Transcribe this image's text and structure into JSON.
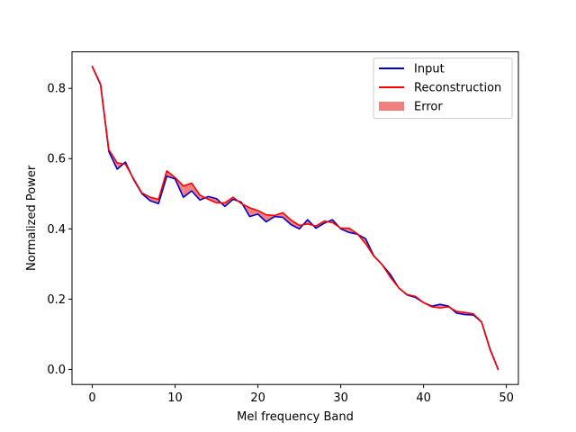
{
  "chart_data": {
    "type": "line",
    "title": "",
    "xlabel": "Mel frequency Band",
    "ylabel": "Normalized Power",
    "xlim": [
      -2.45,
      51.45
    ],
    "ylim": [
      -0.043,
      0.904
    ],
    "xticks": [
      0,
      10,
      20,
      30,
      40,
      50
    ],
    "yticks": [
      0.0,
      0.2,
      0.4,
      0.6,
      0.8
    ],
    "grid": false,
    "legend_position": "top-right",
    "x": [
      0,
      1,
      2,
      3,
      4,
      5,
      6,
      7,
      8,
      9,
      10,
      11,
      12,
      13,
      14,
      15,
      16,
      17,
      18,
      19,
      20,
      21,
      22,
      23,
      24,
      25,
      26,
      27,
      28,
      29,
      30,
      31,
      32,
      33,
      34,
      35,
      36,
      37,
      38,
      39,
      40,
      41,
      42,
      43,
      44,
      45,
      46,
      47,
      48,
      49
    ],
    "series": [
      {
        "name": "Input",
        "color": "#0000cc",
        "values": [
          0.862,
          0.81,
          0.62,
          0.57,
          0.59,
          0.54,
          0.5,
          0.48,
          0.472,
          0.55,
          0.542,
          0.49,
          0.508,
          0.482,
          0.492,
          0.486,
          0.464,
          0.484,
          0.476,
          0.435,
          0.442,
          0.42,
          0.435,
          0.433,
          0.412,
          0.4,
          0.426,
          0.402,
          0.416,
          0.426,
          0.4,
          0.39,
          0.385,
          0.372,
          0.323,
          0.298,
          0.27,
          0.232,
          0.212,
          0.205,
          0.19,
          0.18,
          0.185,
          0.18,
          0.16,
          0.156,
          0.155,
          0.135,
          0.06,
          0.0
        ]
      },
      {
        "name": "Reconstruction",
        "color": "#ff0000",
        "values": [
          0.862,
          0.812,
          0.625,
          0.588,
          0.584,
          0.542,
          0.502,
          0.49,
          0.484,
          0.565,
          0.546,
          0.522,
          0.53,
          0.496,
          0.484,
          0.474,
          0.474,
          0.49,
          0.472,
          0.46,
          0.452,
          0.44,
          0.438,
          0.446,
          0.425,
          0.41,
          0.414,
          0.408,
          0.422,
          0.418,
          0.402,
          0.402,
          0.386,
          0.358,
          0.322,
          0.298,
          0.262,
          0.232,
          0.213,
          0.208,
          0.19,
          0.178,
          0.175,
          0.178,
          0.165,
          0.162,
          0.158,
          0.135,
          0.058,
          0.0
        ]
      }
    ],
    "fill": {
      "name": "Error",
      "color": "#f08080"
    }
  }
}
